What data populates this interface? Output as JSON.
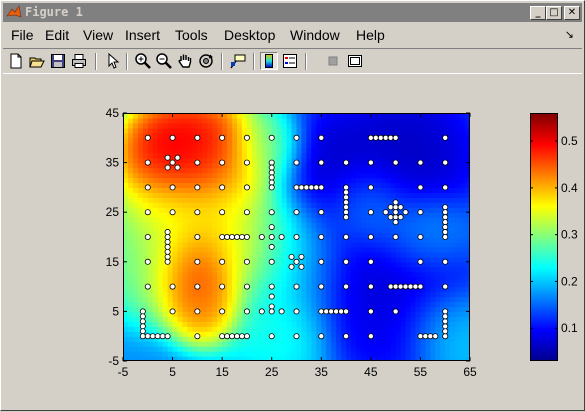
{
  "window": {
    "title": "Figure 1",
    "minimize_glyph": "_",
    "maximize_glyph": "□",
    "close_glyph": "✕"
  },
  "menu": {
    "items": [
      "File",
      "Edit",
      "View",
      "Insert",
      "Tools",
      "Desktop",
      "Window",
      "Help"
    ],
    "dock_glyph": "↘"
  },
  "toolbar": {
    "tools": [
      "new-figure-icon",
      "open-file-icon",
      "save-icon",
      "print-icon",
      "pointer-icon",
      "zoom-in-icon",
      "zoom-out-icon",
      "pan-hand-icon",
      "rotate-3d-icon",
      "data-cursor-icon",
      "insert-colorbar-icon",
      "insert-legend-icon",
      "hide-plot-tools-icon",
      "show-plot-tools-icon"
    ]
  },
  "colors": {
    "window_bg": "#d4d0c8",
    "titlebar_inactive": "#808080"
  },
  "chart_data": {
    "type": "heatmap",
    "colormap": "jet",
    "xlim": [
      -5,
      65
    ],
    "ylim": [
      -5,
      45
    ],
    "x_ticks": [
      -5,
      5,
      15,
      25,
      35,
      45,
      55,
      65
    ],
    "y_ticks": [
      -5,
      5,
      15,
      25,
      35,
      45
    ],
    "colorbar": {
      "range": [
        0.03,
        0.56
      ],
      "ticks": [
        0.1,
        0.2,
        0.3,
        0.4,
        0.5
      ]
    },
    "hotspots": [
      {
        "x": 5,
        "y": 37,
        "value": 0.55,
        "spread": 6
      },
      {
        "x": 12,
        "y": 38,
        "value": 0.52,
        "spread": 5
      },
      {
        "x": 18,
        "y": 33,
        "value": 0.42,
        "spread": 6
      },
      {
        "x": 9,
        "y": 13,
        "value": 0.52,
        "spread": 5
      },
      {
        "x": 12,
        "y": 6,
        "value": 0.45,
        "spread": 4
      },
      {
        "x": 17,
        "y": 19,
        "value": 0.42,
        "spread": 6
      },
      {
        "x": 5,
        "y": 25,
        "value": 0.38,
        "spread": 6
      },
      {
        "x": 0,
        "y": 15,
        "value": 0.3,
        "spread": 6
      },
      {
        "x": 24,
        "y": 38,
        "value": 0.3,
        "spread": 4
      },
      {
        "x": 24,
        "y": 20,
        "value": 0.28,
        "spread": 6
      },
      {
        "x": 30,
        "y": 15,
        "value": 0.25,
        "spread": 6
      },
      {
        "x": 26,
        "y": 3,
        "value": 0.25,
        "spread": 6
      },
      {
        "x": 44,
        "y": 26,
        "value": 0.2,
        "spread": 5
      },
      {
        "x": 56,
        "y": 20,
        "value": 0.2,
        "spread": 5
      },
      {
        "x": 60,
        "y": 2,
        "value": 0.22,
        "spread": 5
      },
      {
        "x": 36,
        "y": 32,
        "value": 0.05,
        "spread": 7
      },
      {
        "x": 52,
        "y": 36,
        "value": 0.05,
        "spread": 8
      },
      {
        "x": 38,
        "y": 14,
        "value": 0.06,
        "spread": 7
      },
      {
        "x": 54,
        "y": 11,
        "value": 0.06,
        "spread": 7
      },
      {
        "x": 48,
        "y": 2,
        "value": 0.08,
        "spread": 6
      }
    ],
    "base_value": 0.17,
    "sample_points": [
      [
        0,
        40
      ],
      [
        5,
        40
      ],
      [
        10,
        40
      ],
      [
        15,
        40
      ],
      [
        20,
        40
      ],
      [
        25,
        40
      ],
      [
        30,
        40
      ],
      [
        35,
        40
      ],
      [
        45,
        40
      ],
      [
        46,
        40
      ],
      [
        47,
        40
      ],
      [
        48,
        40
      ],
      [
        49,
        40
      ],
      [
        50,
        40
      ],
      [
        60,
        40
      ],
      [
        0,
        35
      ],
      [
        10,
        35
      ],
      [
        15,
        35
      ],
      [
        20,
        35
      ],
      [
        25,
        35
      ],
      [
        30,
        35
      ],
      [
        35,
        35
      ],
      [
        40,
        35
      ],
      [
        45,
        35
      ],
      [
        50,
        35
      ],
      [
        55,
        35
      ],
      [
        60,
        35
      ],
      [
        4,
        36
      ],
      [
        6,
        36
      ],
      [
        5,
        35
      ],
      [
        4,
        34
      ],
      [
        6,
        34
      ],
      [
        25,
        34
      ],
      [
        25,
        33
      ],
      [
        25,
        32
      ],
      [
        25,
        31
      ],
      [
        25,
        30
      ],
      [
        0,
        30
      ],
      [
        5,
        30
      ],
      [
        10,
        30
      ],
      [
        15,
        30
      ],
      [
        20,
        30
      ],
      [
        30,
        30
      ],
      [
        31,
        30
      ],
      [
        32,
        30
      ],
      [
        33,
        30
      ],
      [
        34,
        30
      ],
      [
        35,
        30
      ],
      [
        40,
        30
      ],
      [
        45,
        30
      ],
      [
        55,
        30
      ],
      [
        60,
        30
      ],
      [
        40,
        29
      ],
      [
        40,
        28
      ],
      [
        40,
        27
      ],
      [
        40,
        26
      ],
      [
        40,
        25
      ],
      [
        40,
        24
      ],
      [
        0,
        25
      ],
      [
        5,
        25
      ],
      [
        10,
        25
      ],
      [
        15,
        25
      ],
      [
        20,
        25
      ],
      [
        25,
        25
      ],
      [
        30,
        25
      ],
      [
        35,
        25
      ],
      [
        45,
        25
      ],
      [
        55,
        25
      ],
      [
        49,
        26
      ],
      [
        50,
        26
      ],
      [
        51,
        26
      ],
      [
        49,
        24
      ],
      [
        50,
        24
      ],
      [
        51,
        24
      ],
      [
        48,
        25
      ],
      [
        50,
        25
      ],
      [
        52,
        25
      ],
      [
        50,
        27
      ],
      [
        50,
        23
      ],
      [
        60,
        26
      ],
      [
        60,
        25
      ],
      [
        60,
        24
      ],
      [
        60,
        23
      ],
      [
        60,
        22
      ],
      [
        60,
        21
      ],
      [
        60,
        20
      ],
      [
        0,
        20
      ],
      [
        4,
        20
      ],
      [
        4,
        19
      ],
      [
        4,
        18
      ],
      [
        4,
        17
      ],
      [
        4,
        16
      ],
      [
        4,
        15
      ],
      [
        4,
        21
      ],
      [
        10,
        20
      ],
      [
        15,
        20
      ],
      [
        16,
        20
      ],
      [
        17,
        20
      ],
      [
        18,
        20
      ],
      [
        19,
        20
      ],
      [
        20,
        20
      ],
      [
        25,
        20
      ],
      [
        30,
        20
      ],
      [
        35,
        20
      ],
      [
        40,
        20
      ],
      [
        45,
        20
      ],
      [
        50,
        20
      ],
      [
        55,
        20
      ],
      [
        23,
        20
      ],
      [
        27,
        20
      ],
      [
        25,
        18
      ],
      [
        25,
        22
      ],
      [
        0,
        15
      ],
      [
        10,
        15
      ],
      [
        15,
        15
      ],
      [
        20,
        15
      ],
      [
        25,
        15
      ],
      [
        29,
        16
      ],
      [
        31,
        16
      ],
      [
        30,
        15
      ],
      [
        29,
        14
      ],
      [
        31,
        14
      ],
      [
        35,
        15
      ],
      [
        40,
        15
      ],
      [
        45,
        15
      ],
      [
        55,
        15
      ],
      [
        60,
        15
      ],
      [
        0,
        10
      ],
      [
        5,
        10
      ],
      [
        10,
        10
      ],
      [
        15,
        10
      ],
      [
        20,
        10
      ],
      [
        25,
        10
      ],
      [
        30,
        10
      ],
      [
        35,
        10
      ],
      [
        40,
        10
      ],
      [
        45,
        10
      ],
      [
        49,
        10
      ],
      [
        50,
        10
      ],
      [
        51,
        10
      ],
      [
        52,
        10
      ],
      [
        53,
        10
      ],
      [
        54,
        10
      ],
      [
        55,
        10
      ],
      [
        60,
        10
      ],
      [
        25,
        8
      ],
      [
        25,
        6
      ],
      [
        23,
        5
      ],
      [
        27,
        5
      ],
      [
        -1,
        5
      ],
      [
        5,
        5
      ],
      [
        10,
        5
      ],
      [
        15,
        5
      ],
      [
        20,
        5
      ],
      [
        25,
        5
      ],
      [
        30,
        5
      ],
      [
        35,
        5
      ],
      [
        36,
        5
      ],
      [
        37,
        5
      ],
      [
        38,
        5
      ],
      [
        39,
        5
      ],
      [
        40,
        5
      ],
      [
        45,
        5
      ],
      [
        50,
        5
      ],
      [
        60,
        5
      ],
      [
        -1,
        4
      ],
      [
        -1,
        3
      ],
      [
        -1,
        2
      ],
      [
        -1,
        1
      ],
      [
        -1,
        0
      ],
      [
        0,
        0
      ],
      [
        1,
        0
      ],
      [
        2,
        0
      ],
      [
        3,
        0
      ],
      [
        4,
        0
      ],
      [
        10,
        0
      ],
      [
        15,
        0
      ],
      [
        16,
        0
      ],
      [
        17,
        0
      ],
      [
        18,
        0
      ],
      [
        19,
        0
      ],
      [
        20,
        0
      ],
      [
        25,
        0
      ],
      [
        30,
        0
      ],
      [
        35,
        0
      ],
      [
        40,
        0
      ],
      [
        45,
        0
      ],
      [
        55,
        0
      ],
      [
        56,
        0
      ],
      [
        57,
        0
      ],
      [
        58,
        0
      ],
      [
        60,
        0
      ],
      [
        60,
        1
      ],
      [
        60,
        2
      ],
      [
        60,
        3
      ],
      [
        60,
        4
      ]
    ]
  }
}
